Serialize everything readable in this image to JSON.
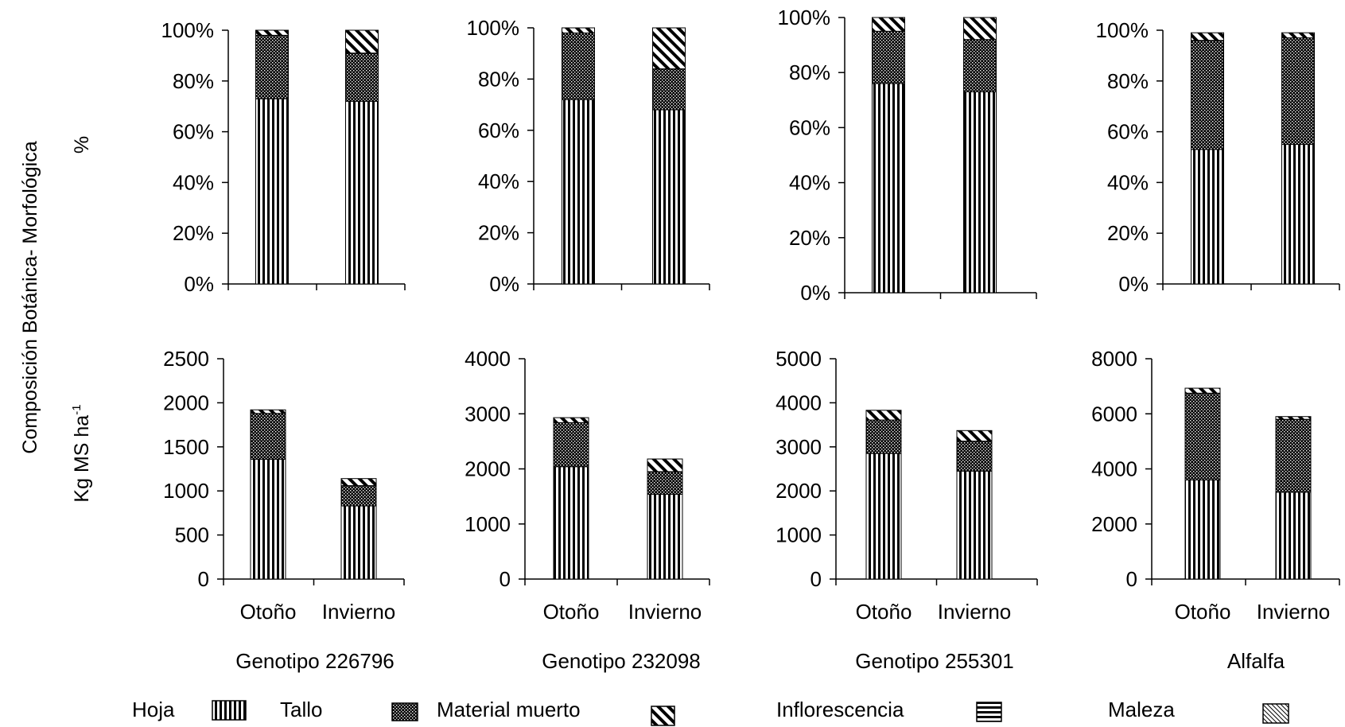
{
  "figure": {
    "ylabel_main": "Composición Botánica- Morfológica",
    "ylabel_top": "%",
    "ylabel_bottom_base": "Kg MS ha",
    "ylabel_bottom_sup": "-1",
    "legend": [
      {
        "label": "Hoja",
        "pattern": "vertical-stripes"
      },
      {
        "label": "Tallo",
        "pattern": "dense-dots"
      },
      {
        "label": "Material muerto",
        "pattern": "diagonal-stripes"
      },
      {
        "label": "Inflorescencia",
        "pattern": "horizontal-stripes"
      },
      {
        "label": "Maleza",
        "pattern": "fine-diagonal-hatch"
      }
    ]
  },
  "chart_data": [
    {
      "type": "bar",
      "stacked": true,
      "panel": "percent",
      "group": "Genotipo 226796",
      "categories": [
        "Otoño",
        "Invierno"
      ],
      "yticks": [
        "0%",
        "20%",
        "40%",
        "60%",
        "80%",
        "100%"
      ],
      "ylim": [
        0,
        100
      ],
      "series": [
        {
          "name": "Hoja",
          "values": [
            73,
            72
          ]
        },
        {
          "name": "Tallo",
          "values": [
            25,
            19
          ]
        },
        {
          "name": "Material muerto",
          "values": [
            2,
            9
          ]
        }
      ]
    },
    {
      "type": "bar",
      "stacked": true,
      "panel": "percent",
      "group": "Genotipo 232098",
      "categories": [
        "Otoño",
        "Invierno"
      ],
      "yticks": [
        "0%",
        "20%",
        "40%",
        "60%",
        "80%",
        "100%"
      ],
      "ylim": [
        0,
        100
      ],
      "series": [
        {
          "name": "Hoja",
          "values": [
            72,
            68
          ]
        },
        {
          "name": "Tallo",
          "values": [
            26,
            16
          ]
        },
        {
          "name": "Material muerto",
          "values": [
            2,
            16
          ]
        }
      ]
    },
    {
      "type": "bar",
      "stacked": true,
      "panel": "percent",
      "group": "Genotipo 255301",
      "categories": [
        "Otoño",
        "Invierno"
      ],
      "yticks": [
        "0%",
        "20%",
        "40%",
        "60%",
        "80%",
        "100%"
      ],
      "ylim": [
        0,
        100
      ],
      "series": [
        {
          "name": "Hoja",
          "values": [
            76,
            73
          ]
        },
        {
          "name": "Tallo",
          "values": [
            19,
            19
          ]
        },
        {
          "name": "Material muerto",
          "values": [
            5,
            8
          ]
        }
      ]
    },
    {
      "type": "bar",
      "stacked": true,
      "panel": "percent",
      "group": "Alfalfa",
      "categories": [
        "Otoño",
        "Invierno"
      ],
      "yticks": [
        "0%",
        "20%",
        "40%",
        "60%",
        "80%",
        "100%"
      ],
      "ylim": [
        0,
        100
      ],
      "series": [
        {
          "name": "Hoja",
          "values": [
            53,
            55
          ]
        },
        {
          "name": "Tallo",
          "values": [
            43,
            42
          ]
        },
        {
          "name": "Material muerto",
          "values": [
            3,
            2
          ]
        }
      ]
    },
    {
      "type": "bar",
      "stacked": true,
      "panel": "kg",
      "group": "Genotipo 226796",
      "categories": [
        "Otoño",
        "Invierno"
      ],
      "yticks": [
        "0",
        "500",
        "1000",
        "1500",
        "2000",
        "2500"
      ],
      "ylim": [
        0,
        2500
      ],
      "series": [
        {
          "name": "Hoja",
          "values": [
            1360,
            830
          ]
        },
        {
          "name": "Tallo",
          "values": [
            520,
            230
          ]
        },
        {
          "name": "Material muerto",
          "values": [
            40,
            80
          ]
        }
      ]
    },
    {
      "type": "bar",
      "stacked": true,
      "panel": "kg",
      "group": "Genotipo 232098",
      "categories": [
        "Otoño",
        "Invierno"
      ],
      "yticks": [
        "0",
        "1000",
        "2000",
        "3000",
        "4000"
      ],
      "ylim": [
        0,
        4000
      ],
      "series": [
        {
          "name": "Hoja",
          "values": [
            2040,
            1540
          ]
        },
        {
          "name": "Tallo",
          "values": [
            800,
            410
          ]
        },
        {
          "name": "Material muerto",
          "values": [
            90,
            230
          ]
        }
      ]
    },
    {
      "type": "bar",
      "stacked": true,
      "panel": "kg",
      "group": "Genotipo 255301",
      "categories": [
        "Otoño",
        "Invierno"
      ],
      "yticks": [
        "0",
        "1000",
        "2000",
        "3000",
        "4000",
        "5000"
      ],
      "ylim": [
        0,
        5000
      ],
      "series": [
        {
          "name": "Hoja",
          "values": [
            2850,
            2450
          ]
        },
        {
          "name": "Tallo",
          "values": [
            760,
            680
          ]
        },
        {
          "name": "Material muerto",
          "values": [
            220,
            240
          ]
        }
      ]
    },
    {
      "type": "bar",
      "stacked": true,
      "panel": "kg",
      "group": "Alfalfa",
      "categories": [
        "Otoño",
        "Invierno"
      ],
      "yticks": [
        "0",
        "2000",
        "4000",
        "6000",
        "8000"
      ],
      "ylim": [
        0,
        8000
      ],
      "series": [
        {
          "name": "Hoja",
          "values": [
            3600,
            3150
          ]
        },
        {
          "name": "Tallo",
          "values": [
            3150,
            2650
          ]
        },
        {
          "name": "Material muerto",
          "values": [
            180,
            100
          ]
        }
      ]
    }
  ]
}
